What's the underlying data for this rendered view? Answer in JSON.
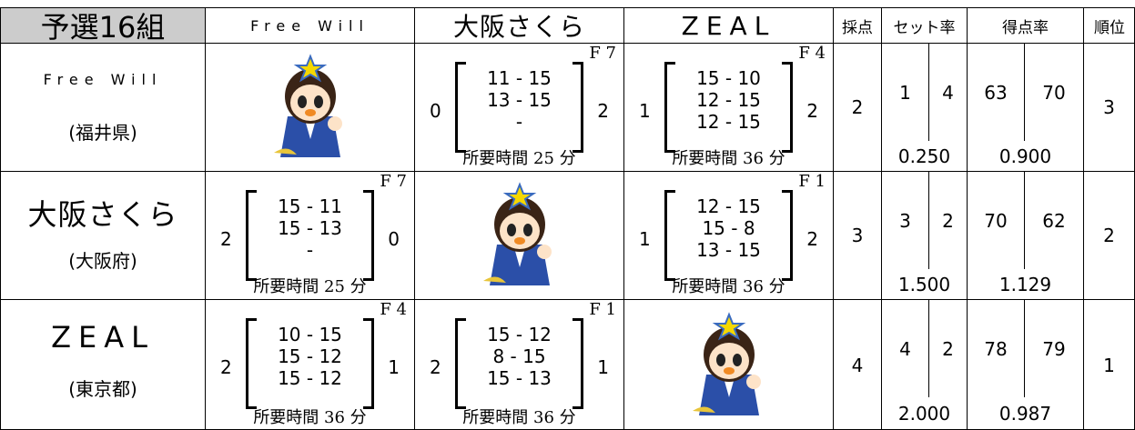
{
  "header": {
    "title": "予選16組",
    "teams": [
      "Free Will",
      "大阪さくら",
      "ZEAL"
    ],
    "columns": [
      "採点",
      "セット率",
      "得点率",
      "順位"
    ]
  },
  "rows": [
    {
      "team": "Free Will",
      "prefecture": "(福井県)",
      "matches": [
        null,
        {
          "court": "F 7",
          "left": 0,
          "sets": [
            "11 - 15",
            "13 - 15",
            "-"
          ],
          "right": 2,
          "time": "所要時間 25 分"
        },
        {
          "court": "F 4",
          "left": 1,
          "sets": [
            "15 - 10",
            "12 - 15",
            "12 - 15"
          ],
          "right": 2,
          "time": "所要時間 36 分"
        }
      ],
      "score": 2,
      "sets_won": 1,
      "sets_lost": 4,
      "set_rate": "0.250",
      "points_won": 63,
      "points_lost": 70,
      "point_rate": "0.900",
      "rank": 3
    },
    {
      "team": "大阪さくら",
      "prefecture": "(大阪府)",
      "matches": [
        {
          "court": "F 7",
          "left": 2,
          "sets": [
            "15 - 11",
            "15 - 13",
            "-"
          ],
          "right": 0,
          "time": "所要時間 25 分"
        },
        null,
        {
          "court": "F 1",
          "left": 1,
          "sets": [
            "12 - 15",
            "15 - 8",
            "13 - 15"
          ],
          "right": 2,
          "time": "所要時間 36 分"
        }
      ],
      "score": 3,
      "sets_won": 3,
      "sets_lost": 2,
      "set_rate": "1.500",
      "points_won": 70,
      "points_lost": 62,
      "point_rate": "1.129",
      "rank": 2
    },
    {
      "team": "ZEAL",
      "prefecture": "(東京都)",
      "matches": [
        {
          "court": "F 4",
          "left": 2,
          "sets": [
            "10 - 15",
            "15 - 12",
            "15 - 12"
          ],
          "right": 1,
          "time": "所要時間 36 分"
        },
        {
          "court": "F 1",
          "left": 2,
          "sets": [
            "15 - 12",
            "8 - 15",
            "15 - 13"
          ],
          "right": 1,
          "time": "所要時間 36 分"
        },
        null
      ],
      "score": 4,
      "sets_won": 4,
      "sets_lost": 2,
      "set_rate": "2.000",
      "points_won": 78,
      "points_lost": 79,
      "point_rate": "0.987",
      "rank": 1
    }
  ]
}
